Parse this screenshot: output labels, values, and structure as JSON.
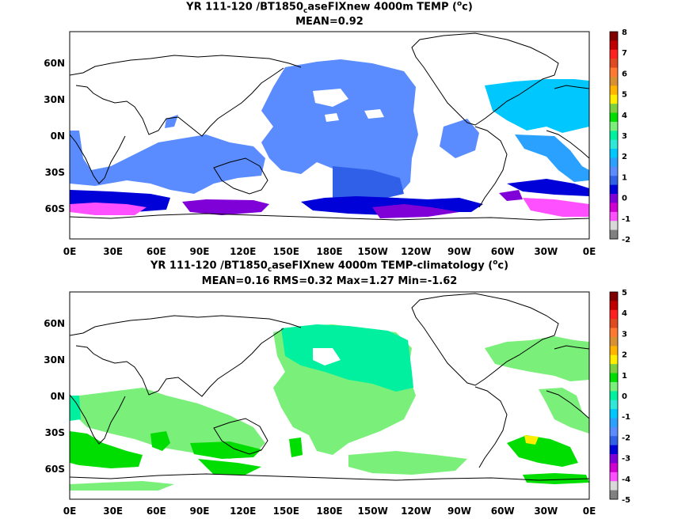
{
  "panels": [
    {
      "title_pre": "YR 111-120 /BT1850",
      "title_sub": "c",
      "title_post": "aseFIXnew 4000m TEMP (",
      "title_sup": "o",
      "title_end": "c)",
      "stats": "MEAN=0.92",
      "lat_labels": [
        "60N",
        "30N",
        "0N",
        "30S",
        "60S"
      ],
      "lon_labels": [
        "0E",
        "30E",
        "60E",
        "90E",
        "120E",
        "150E",
        "180E",
        "150W",
        "120W",
        "90W",
        "60W",
        "30W",
        "0E"
      ],
      "colorbar": {
        "labels": [
          "8",
          "7",
          "6",
          "5",
          "4",
          "3",
          "2",
          "1",
          "0",
          "-1",
          "-2"
        ],
        "colors": [
          "#800000",
          "#c00000",
          "#ff2020",
          "#e04a20",
          "#ff7a30",
          "#d89030",
          "#ffb400",
          "#ffee00",
          "#7cd040",
          "#00dd00",
          "#7af07a",
          "#00f0a0",
          "#30e8d8",
          "#00c8ff",
          "#2aa0ff",
          "#5a8cff",
          "#3060e8",
          "#0000d8",
          "#8000d8",
          "#d000d0",
          "#ff50ff",
          "#d8d8d8",
          "#808080"
        ]
      }
    },
    {
      "title_pre": "YR 111-120 /BT1850",
      "title_sub": "c",
      "title_post": "aseFIXnew 4000m TEMP-climatology (",
      "title_sup": "o",
      "title_end": "c)",
      "stats": "MEAN=0.16   RMS=0.32   Max=1.27   Min=-1.62",
      "lat_labels": [
        "60N",
        "30N",
        "0N",
        "30S",
        "60S"
      ],
      "lon_labels": [
        "0E",
        "30E",
        "60E",
        "90E",
        "120E",
        "150E",
        "180E",
        "150W",
        "120W",
        "90W",
        "60W",
        "30W",
        "0E"
      ],
      "colorbar": {
        "labels": [
          "5",
          "4",
          "3",
          "2",
          "1",
          "0",
          "-1",
          "-2",
          "-3",
          "-4",
          "-5"
        ],
        "colors": [
          "#800000",
          "#c00000",
          "#ff2020",
          "#e04a20",
          "#ff7a30",
          "#d89030",
          "#ffb400",
          "#ffee00",
          "#7cd040",
          "#00dd00",
          "#7af07a",
          "#00f0a0",
          "#30e8d8",
          "#00c8ff",
          "#2aa0ff",
          "#5a8cff",
          "#3060e8",
          "#0000d8",
          "#8000d8",
          "#d000d0",
          "#ff50ff",
          "#d8d8d8",
          "#808080"
        ]
      }
    }
  ]
}
